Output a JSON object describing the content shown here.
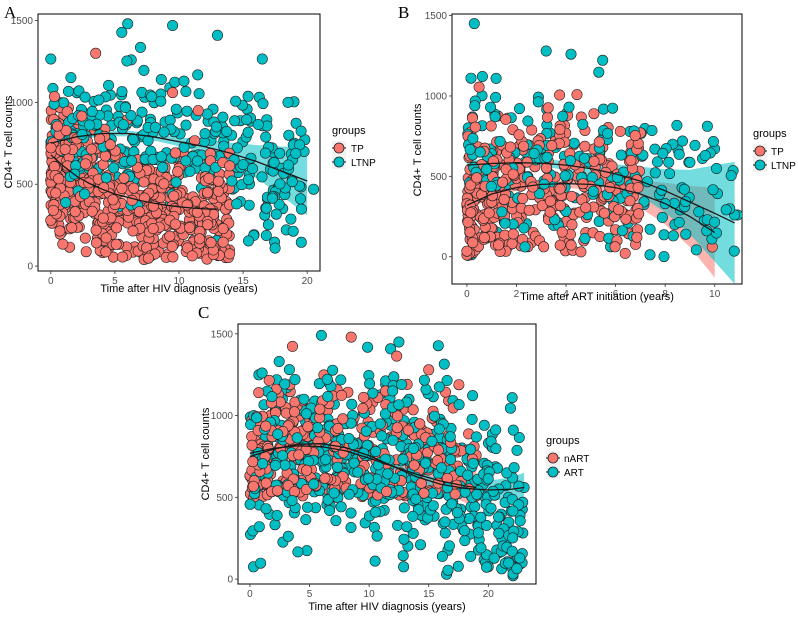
{
  "colors": {
    "group_a": "#F8766D",
    "group_b": "#00BFC4",
    "trend": "#1a1a1a",
    "point_edge": "#222222"
  },
  "chart_data": [
    {
      "panel": "A",
      "type": "scatter",
      "xlabel": "Time after HIV diagnosis (years)",
      "ylabel": "CD4+ T cell counts",
      "xlim": [
        -1,
        21
      ],
      "ylim": [
        -30,
        1540
      ],
      "xticks": [
        0,
        5,
        10,
        15,
        20
      ],
      "yticks": [
        0,
        500,
        1000,
        1500
      ],
      "legend": {
        "title": "groups",
        "position": "right"
      },
      "series": [
        {
          "name": "TP",
          "color": "#F8766D",
          "cloud": {
            "n": 620,
            "xmax": 14,
            "xskew": 1.4,
            "ymin": 40,
            "ymax": 1300,
            "centerQuad": [
              620,
              -55,
              2.2
            ],
            "spread": 190
          },
          "trend": {
            "x": [
              0,
              1,
              2,
              3,
              4,
              5,
              6,
              7,
              8,
              9,
              10,
              11,
              12,
              13
            ],
            "y": [
              680,
              610,
              550,
              505,
              470,
              440,
              420,
              400,
              385,
              372,
              362,
              355,
              350,
              348
            ]
          },
          "band": {
            "x": [
              0,
              1,
              2,
              3,
              4,
              5,
              6,
              7,
              8,
              9,
              10,
              11,
              12,
              13
            ],
            "w": [
              22,
              14,
              12,
              12,
              12,
              12,
              13,
              14,
              16,
              18,
              22,
              28,
              35,
              45
            ]
          }
        },
        {
          "name": "LTNP",
          "color": "#00BFC4",
          "cloud": {
            "n": 340,
            "xmax": 20,
            "xskew": 1.15,
            "ymin": 100,
            "ymax": 1500,
            "centerQuad": [
              780,
              5,
              -0.8
            ],
            "spread": 220
          },
          "trend": {
            "x": [
              0,
              2,
              4,
              6,
              8,
              10,
              12,
              14,
              16,
              18,
              20
            ],
            "y": [
              750,
              790,
              810,
              810,
              790,
              760,
              730,
              690,
              640,
              580,
              520
            ]
          },
          "band": {
            "x": [
              0,
              2,
              4,
              6,
              8,
              10,
              12,
              14,
              16,
              18,
              20
            ],
            "w": [
              30,
              22,
              18,
              18,
              22,
              28,
              40,
              65,
              100,
              150,
              210
            ]
          }
        }
      ],
      "visible_points": [
        {
          "series": 0,
          "x": 0,
          "y": 280
        },
        {
          "series": 0,
          "x": 3.5,
          "y": 1300
        },
        {
          "series": 0,
          "x": 9.5,
          "y": 1060
        },
        {
          "series": 0,
          "x": 11.5,
          "y": 950
        },
        {
          "series": 0,
          "x": 12.5,
          "y": 570
        },
        {
          "series": 0,
          "x": 12.5,
          "y": 530
        },
        {
          "series": 1,
          "x": 0,
          "y": 1265
        },
        {
          "series": 1,
          "x": 6,
          "y": 1480
        },
        {
          "series": 1,
          "x": 9.5,
          "y": 1470
        },
        {
          "series": 1,
          "x": 13,
          "y": 1410
        },
        {
          "series": 1,
          "x": 16.5,
          "y": 1265
        },
        {
          "series": 1,
          "x": 18.5,
          "y": 1000
        },
        {
          "series": 1,
          "x": 19,
          "y": 750
        },
        {
          "series": 1,
          "x": 20.5,
          "y": 470
        },
        {
          "series": 1,
          "x": 17.5,
          "y": 110
        },
        {
          "series": 1,
          "x": 15,
          "y": 620
        },
        {
          "series": 1,
          "x": 14.5,
          "y": 380
        }
      ]
    },
    {
      "panel": "B",
      "type": "scatter",
      "xlabel": "Time after ART initiation (years)",
      "ylabel": "CD4+ T cell counts",
      "xlim": [
        -0.6,
        11.1
      ],
      "ylim": [
        -170,
        1510
      ],
      "xticks": [
        0,
        2,
        4,
        6,
        8,
        10
      ],
      "yticks": [
        0,
        500,
        1000,
        1500
      ],
      "legend": {
        "title": "groups",
        "position": "right"
      },
      "series": [
        {
          "name": "TP",
          "color": "#F8766D",
          "cloud": {
            "n": 380,
            "xmax": 7,
            "xskew": 1.45,
            "ymin": 0,
            "ymax": 1280,
            "centerQuad": [
              320,
              90,
              -12
            ],
            "spread": 230
          },
          "trend": {
            "x": [
              0,
              1,
              2,
              3,
              4,
              5,
              6,
              7,
              8,
              9,
              10
            ],
            "y": [
              320,
              390,
              430,
              450,
              455,
              450,
              430,
              390,
              330,
              250,
              150
            ]
          },
          "band": {
            "x": [
              0,
              1,
              2,
              3,
              4,
              5,
              6,
              7,
              8,
              9,
              10
            ],
            "w": [
              35,
              22,
              20,
              20,
              25,
              35,
              55,
              85,
              130,
              190,
              280
            ]
          }
        },
        {
          "name": "LTNP",
          "color": "#00BFC4",
          "cloud": {
            "n": 230,
            "xmax": 11,
            "xskew": 1.35,
            "ymin": 0,
            "ymax": 1280,
            "centerQuad": [
              590,
              0,
              -2
            ],
            "spread": 240
          },
          "trend": {
            "x": [
              0,
              1,
              2,
              3,
              4,
              5,
              6,
              7,
              8,
              9,
              10,
              10.8
            ],
            "y": [
              570,
              580,
              585,
              582,
              570,
              548,
              515,
              470,
              410,
              340,
              270,
              210
            ]
          },
          "band": {
            "x": [
              0,
              1,
              2,
              3,
              4,
              5,
              6,
              7,
              8,
              9,
              10,
              10.8
            ],
            "w": [
              30,
              22,
              20,
              22,
              28,
              40,
              60,
              90,
              135,
              200,
              300,
              380
            ]
          }
        }
      ],
      "visible_points": [
        {
          "series": 1,
          "x": 0.3,
          "y": 1450
        },
        {
          "series": 1,
          "x": 3.2,
          "y": 1280
        },
        {
          "series": 1,
          "x": 4.2,
          "y": 1260
        },
        {
          "series": 1,
          "x": 10.8,
          "y": 260
        },
        {
          "series": 1,
          "x": 9.7,
          "y": 230
        },
        {
          "series": 1,
          "x": 6.5,
          "y": 210
        },
        {
          "series": 1,
          "x": 8,
          "y": 330
        },
        {
          "series": 0,
          "x": 7,
          "y": 770
        },
        {
          "series": 0,
          "x": 9.9,
          "y": 60
        },
        {
          "series": 0,
          "x": 4.6,
          "y": 30
        },
        {
          "series": 0,
          "x": 4.8,
          "y": 150
        }
      ]
    },
    {
      "panel": "C",
      "type": "scatter",
      "xlabel": "Time after HIV diagnosis (years)",
      "ylabel": "CD4+ T cell counts",
      "xlim": [
        -1,
        24
      ],
      "ylim": [
        -30,
        1560
      ],
      "xticks": [
        0,
        5,
        10,
        15,
        20
      ],
      "yticks": [
        0,
        500,
        1000,
        1500
      ],
      "legend": {
        "title": "groups",
        "position": "right"
      },
      "series": [
        {
          "name": "nART",
          "color": "#F8766D",
          "cloud": {
            "n": 360,
            "xmax": 19,
            "xskew": 1.3,
            "ymin": 500,
            "ymax": 1500,
            "centerQuad": [
              770,
              10,
              -0.8
            ],
            "spread": 210
          },
          "trend": {
            "x": [
              0,
              2,
              4,
              6,
              8,
              10,
              12,
              14,
              16,
              18,
              19
            ],
            "y": [
              770,
              800,
              815,
              810,
              785,
              740,
              690,
              640,
              600,
              570,
              560
            ]
          },
          "band": {
            "x": [
              0,
              2,
              4,
              6,
              8,
              10,
              12,
              14,
              16,
              18,
              19
            ],
            "w": [
              20,
              16,
              14,
              14,
              16,
              22,
              30,
              45,
              70,
              100,
              120
            ]
          }
        },
        {
          "name": "ART",
          "color": "#00BFC4",
          "cloud": {
            "n": 560,
            "xmax": 23,
            "xskew": 1.0,
            "ymin": 20,
            "ymax": 1480,
            "centerQuad": [
              740,
              15,
              -1.5
            ],
            "spread": 260
          },
          "trend": {
            "x": [
              0,
              2,
              4,
              6,
              8,
              10,
              12,
              14,
              16,
              18,
              20,
              22,
              23
            ],
            "y": [
              750,
              795,
              825,
              828,
              805,
              755,
              690,
              625,
              580,
              555,
              545,
              550,
              560
            ]
          },
          "band": {
            "x": [
              0,
              2,
              4,
              6,
              8,
              10,
              12,
              14,
              16,
              18,
              20,
              22,
              23
            ],
            "w": [
              18,
              14,
              12,
              12,
              14,
              16,
              20,
              26,
              32,
              40,
              55,
              75,
              90
            ]
          }
        }
      ],
      "visible_points": [
        {
          "series": 1,
          "x": 6,
          "y": 1490
        },
        {
          "series": 0,
          "x": 8.5,
          "y": 1480
        },
        {
          "series": 1,
          "x": 12.5,
          "y": 1450
        },
        {
          "series": 0,
          "x": 15,
          "y": 1280
        },
        {
          "series": 1,
          "x": 22,
          "y": 1110
        },
        {
          "series": 1,
          "x": 23,
          "y": 560
        },
        {
          "series": 1,
          "x": 22,
          "y": 170
        },
        {
          "series": 1,
          "x": 16.5,
          "y": 30
        },
        {
          "series": 1,
          "x": 10.5,
          "y": 110
        }
      ]
    }
  ]
}
